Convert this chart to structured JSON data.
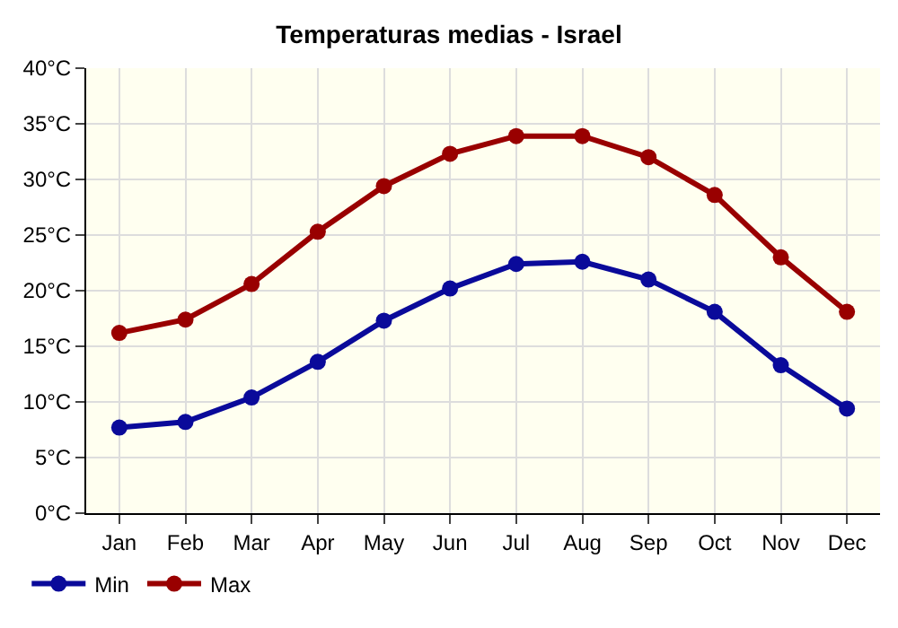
{
  "chart_data": {
    "type": "line",
    "title": "Temperaturas medias - Israel",
    "categories": [
      "Jan",
      "Feb",
      "Mar",
      "Apr",
      "May",
      "Jun",
      "Jul",
      "Aug",
      "Sep",
      "Oct",
      "Nov",
      "Dec"
    ],
    "series": [
      {
        "name": "Min",
        "color": "#0a0a9a",
        "values": [
          7.7,
          8.2,
          10.4,
          13.6,
          17.3,
          20.2,
          22.4,
          22.6,
          21.0,
          18.1,
          13.3,
          9.4
        ]
      },
      {
        "name": "Max",
        "color": "#990000",
        "values": [
          16.2,
          17.4,
          20.6,
          25.3,
          29.4,
          32.3,
          33.9,
          33.9,
          32.0,
          28.6,
          23.0,
          18.1
        ]
      }
    ],
    "ylim": [
      0,
      40
    ],
    "yticks": [
      {
        "value": 0,
        "label": "0°C"
      },
      {
        "value": 5,
        "label": "5°C"
      },
      {
        "value": 10,
        "label": "10°C"
      },
      {
        "value": 15,
        "label": "15°C"
      },
      {
        "value": 20,
        "label": "20°C"
      },
      {
        "value": 25,
        "label": "25°C"
      },
      {
        "value": 30,
        "label": "30°C"
      },
      {
        "value": 35,
        "label": "35°C"
      },
      {
        "value": 40,
        "label": "40°C"
      }
    ],
    "grid": true,
    "legend": "bottom left",
    "marker": "circle",
    "line_style": "solid"
  }
}
